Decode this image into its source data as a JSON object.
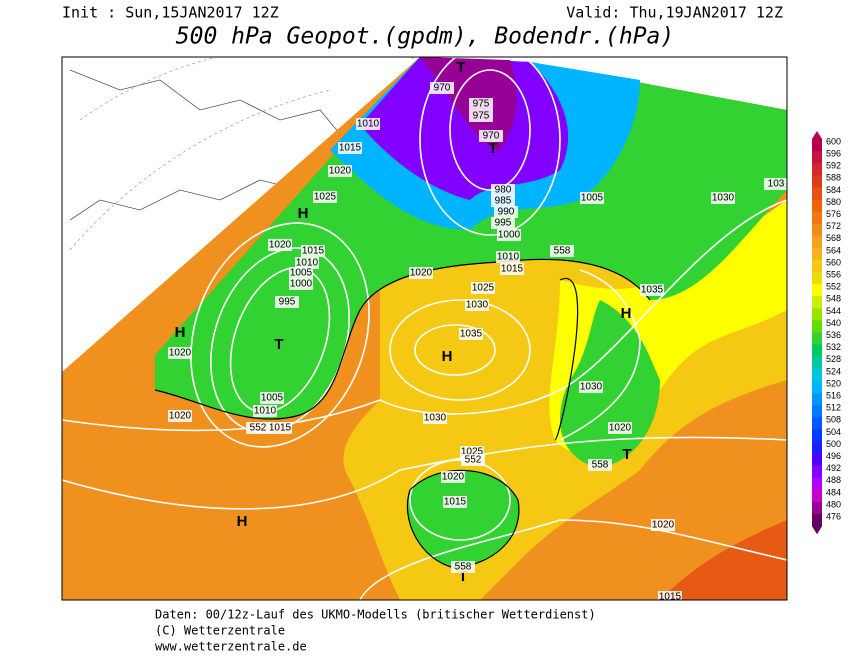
{
  "header": {
    "init": "Init : Sun,15JAN2017 12Z",
    "valid": "Valid: Thu,19JAN2017 12Z",
    "title": "500 hPa Geopot.(gpdm), Bodendr.(hPa)"
  },
  "map": {
    "labels": [
      "T",
      "970",
      "975",
      "975",
      "970",
      "T",
      "1010",
      "1015",
      "1020",
      "1025",
      "H",
      "1020",
      "1015",
      "1010",
      "1005",
      "1000",
      "995",
      "T",
      "H",
      "1020",
      "1005",
      "1010",
      "1015",
      "1020",
      "980",
      "985",
      "990",
      "995",
      "1000",
      "1005",
      "1030",
      "1010",
      "1015",
      "1020",
      "1025",
      "1030",
      "1035",
      "H",
      "1035",
      "H",
      "1030",
      "1030",
      "1020",
      "T",
      "1025",
      "1020",
      "1015",
      "1020",
      "H",
      "T",
      "1015",
      "103",
      "558",
      "552",
      "552",
      "558",
      "558"
    ]
  },
  "legend": {
    "levels": [
      {
        "value": 600,
        "color": "#b4004b"
      },
      {
        "value": 596,
        "color": "#c8143c"
      },
      {
        "value": 592,
        "color": "#d2282d"
      },
      {
        "value": 588,
        "color": "#dc3c1e"
      },
      {
        "value": 584,
        "color": "#e65014"
      },
      {
        "value": 580,
        "color": "#f0640a"
      },
      {
        "value": 576,
        "color": "#f07814"
      },
      {
        "value": 572,
        "color": "#f08c1e"
      },
      {
        "value": 568,
        "color": "#f5a01e"
      },
      {
        "value": 564,
        "color": "#f5b41e"
      },
      {
        "value": 560,
        "color": "#f5c814"
      },
      {
        "value": 556,
        "color": "#f0dc0a"
      },
      {
        "value": 552,
        "color": "#ffff00"
      },
      {
        "value": 548,
        "color": "#c8f000"
      },
      {
        "value": 544,
        "color": "#96e600"
      },
      {
        "value": 540,
        "color": "#64dc00"
      },
      {
        "value": 536,
        "color": "#32d232"
      },
      {
        "value": 532,
        "color": "#00c864"
      },
      {
        "value": 528,
        "color": "#00c8a0"
      },
      {
        "value": 524,
        "color": "#00c8dc"
      },
      {
        "value": 520,
        "color": "#00b4ff"
      },
      {
        "value": 516,
        "color": "#0096ff"
      },
      {
        "value": 512,
        "color": "#0078ff"
      },
      {
        "value": 508,
        "color": "#005aff"
      },
      {
        "value": 504,
        "color": "#003cff"
      },
      {
        "value": 500,
        "color": "#1e1eff"
      },
      {
        "value": 496,
        "color": "#5000ff"
      },
      {
        "value": 492,
        "color": "#8200ff"
      },
      {
        "value": 488,
        "color": "#b400ff"
      },
      {
        "value": 484,
        "color": "#c800c8"
      },
      {
        "value": 480,
        "color": "#960096"
      },
      {
        "value": 476,
        "color": "#640064"
      }
    ]
  },
  "footer": {
    "lines": [
      "Daten: 00/12z-Lauf des UKMO-Modells (britischer Wetterdienst)",
      "(C) Wetterzentrale",
      "www.wetterzentrale.de"
    ]
  }
}
